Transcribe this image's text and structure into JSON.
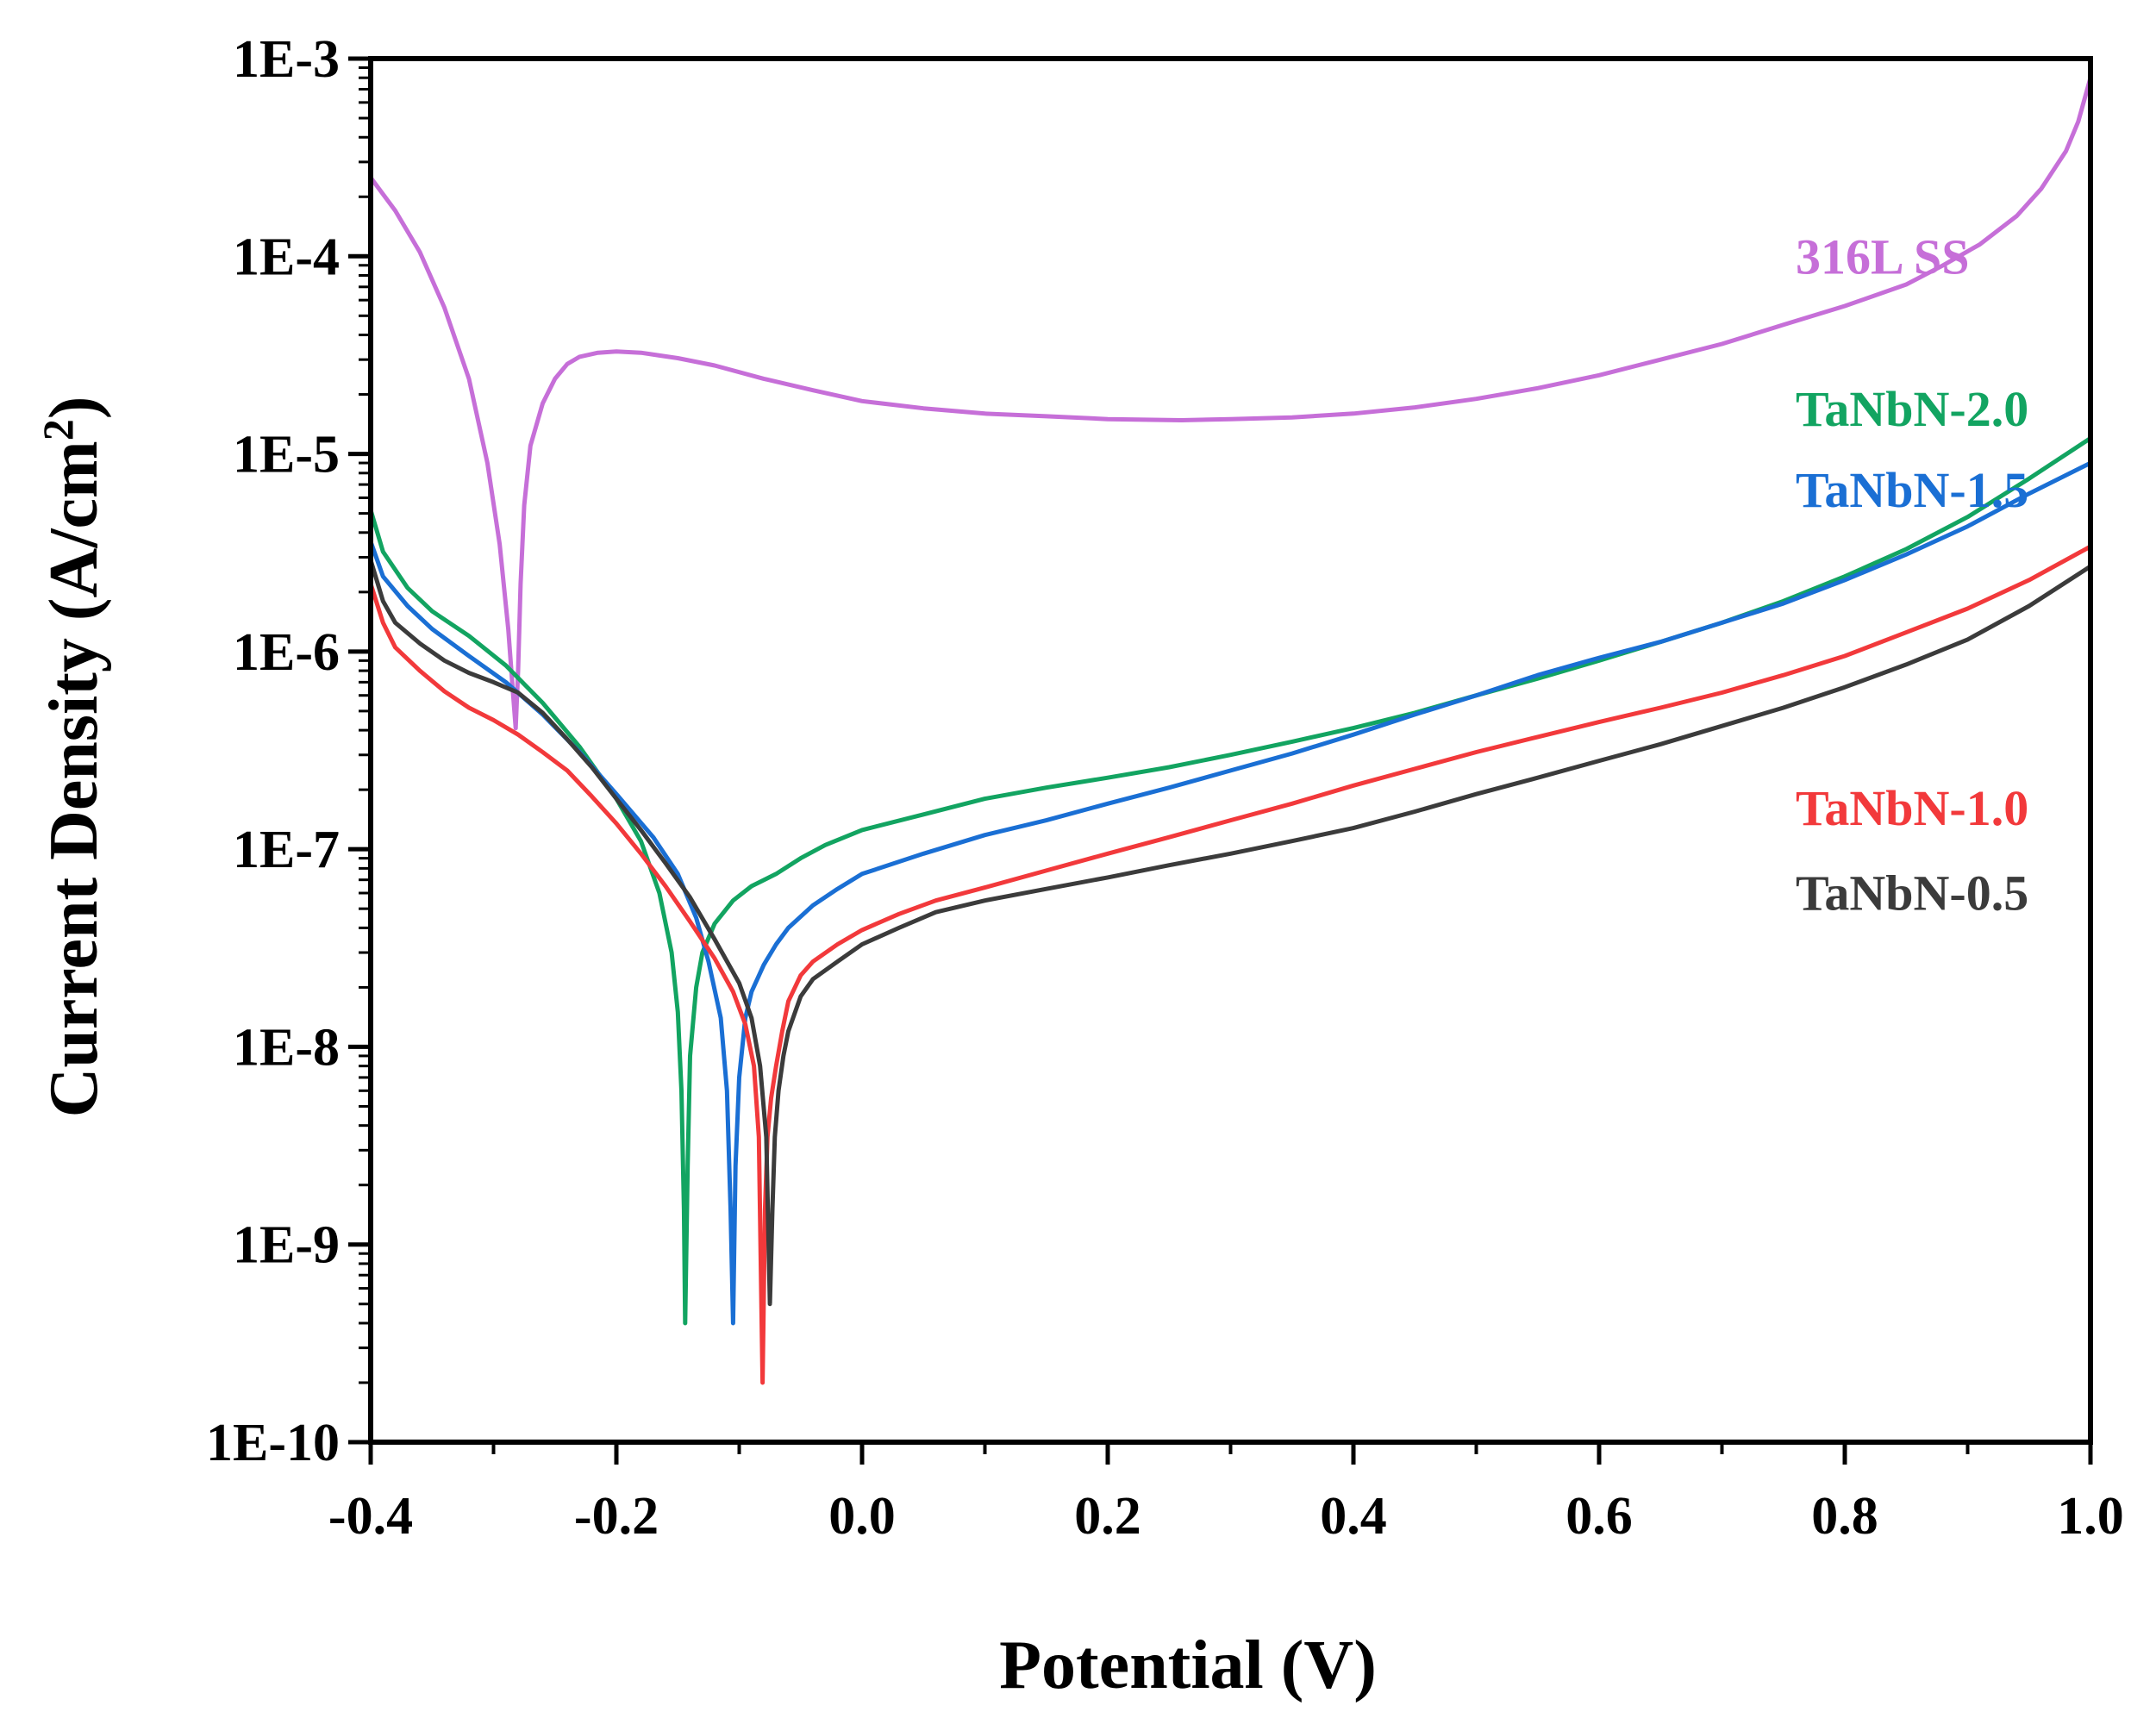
{
  "chart_data": {
    "type": "line",
    "title": "",
    "xlabel": "Potential (V)",
    "ylabel_main": "Current Density (A/cm",
    "ylabel_sup": "2",
    "ylabel_close": ")",
    "xscale": "linear",
    "yscale": "log",
    "xlim": [
      -0.4,
      1.0
    ],
    "ylim_exp": [
      -10,
      -3
    ],
    "xticks": [
      -0.4,
      -0.2,
      0.0,
      0.2,
      0.4,
      0.6,
      0.8,
      1.0
    ],
    "xtick_labels": [
      "-0.4",
      "-0.2",
      "0.0",
      "0.2",
      "0.4",
      "0.6",
      "0.8",
      "1.0"
    ],
    "yticks_exp": [
      -10,
      -9,
      -8,
      -7,
      -6,
      -5,
      -4,
      -3
    ],
    "ytick_labels": [
      "1E-10",
      "1E-9",
      "1E-8",
      "1E-7",
      "1E-6",
      "1E-5",
      "1E-4",
      "1E-3"
    ],
    "legend": "inline labels",
    "series": [
      {
        "name": "316L SS",
        "color": "#c66fd8",
        "label_pos": {
          "x": 0.76,
          "y": -4.0
        },
        "points": [
          [
            -0.4,
            0.00025
          ],
          [
            -0.38,
            0.00017
          ],
          [
            -0.36,
            0.000105
          ],
          [
            -0.34,
            5.5e-05
          ],
          [
            -0.32,
            2.4e-05
          ],
          [
            -0.305,
            9e-06
          ],
          [
            -0.295,
            3.5e-06
          ],
          [
            -0.288,
            1.3e-06
          ],
          [
            -0.284,
            6e-07
          ],
          [
            -0.282,
            4.1e-07
          ],
          [
            -0.28,
            8e-07
          ],
          [
            -0.278,
            2.2e-06
          ],
          [
            -0.275,
            5.5e-06
          ],
          [
            -0.27,
            1.1e-05
          ],
          [
            -0.26,
            1.8e-05
          ],
          [
            -0.25,
            2.4e-05
          ],
          [
            -0.24,
            2.85e-05
          ],
          [
            -0.23,
            3.1e-05
          ],
          [
            -0.215,
            3.25e-05
          ],
          [
            -0.2,
            3.3e-05
          ],
          [
            -0.18,
            3.25e-05
          ],
          [
            -0.15,
            3.05e-05
          ],
          [
            -0.12,
            2.8e-05
          ],
          [
            -0.08,
            2.4e-05
          ],
          [
            -0.04,
            2.1e-05
          ],
          [
            0.0,
            1.85e-05
          ],
          [
            0.05,
            1.7e-05
          ],
          [
            0.1,
            1.6e-05
          ],
          [
            0.15,
            1.55e-05
          ],
          [
            0.2,
            1.5e-05
          ],
          [
            0.26,
            1.48e-05
          ],
          [
            0.3,
            1.5e-05
          ],
          [
            0.35,
            1.53e-05
          ],
          [
            0.4,
            1.6e-05
          ],
          [
            0.45,
            1.72e-05
          ],
          [
            0.5,
            1.9e-05
          ],
          [
            0.55,
            2.15e-05
          ],
          [
            0.6,
            2.5e-05
          ],
          [
            0.65,
            3e-05
          ],
          [
            0.7,
            3.6e-05
          ],
          [
            0.75,
            4.5e-05
          ],
          [
            0.8,
            5.6e-05
          ],
          [
            0.85,
            7.2e-05
          ],
          [
            0.88,
            9e-05
          ],
          [
            0.91,
            0.000115
          ],
          [
            0.94,
            0.00016
          ],
          [
            0.96,
            0.00022
          ],
          [
            0.98,
            0.00034
          ],
          [
            0.99,
            0.00048
          ],
          [
            1.0,
            0.0008
          ]
        ]
      },
      {
        "name": "TaNbN-2.0",
        "color": "#12a461",
        "label_pos": {
          "x": 0.76,
          "y": -4.77
        },
        "points": [
          [
            -0.4,
            5.2e-06
          ],
          [
            -0.39,
            3.2e-06
          ],
          [
            -0.37,
            2.1e-06
          ],
          [
            -0.35,
            1.6e-06
          ],
          [
            -0.32,
            1.2e-06
          ],
          [
            -0.29,
            8.5e-07
          ],
          [
            -0.26,
            5.5e-07
          ],
          [
            -0.23,
            3.3e-07
          ],
          [
            -0.2,
            1.8e-07
          ],
          [
            -0.18,
            1.1e-07
          ],
          [
            -0.165,
            6e-08
          ],
          [
            -0.155,
            3e-08
          ],
          [
            -0.15,
            1.5e-08
          ],
          [
            -0.147,
            6e-09
          ],
          [
            -0.145,
            1.5e-09
          ],
          [
            -0.144,
            4e-10
          ],
          [
            -0.142,
            2.5e-09
          ],
          [
            -0.14,
            9e-09
          ],
          [
            -0.135,
            2e-08
          ],
          [
            -0.13,
            3e-08
          ],
          [
            -0.12,
            4.2e-08
          ],
          [
            -0.105,
            5.5e-08
          ],
          [
            -0.09,
            6.5e-08
          ],
          [
            -0.07,
            7.5e-08
          ],
          [
            -0.05,
            9e-08
          ],
          [
            -0.03,
            1.05e-07
          ],
          [
            0.0,
            1.25e-07
          ],
          [
            0.05,
            1.5e-07
          ],
          [
            0.1,
            1.8e-07
          ],
          [
            0.15,
            2.05e-07
          ],
          [
            0.2,
            2.3e-07
          ],
          [
            0.25,
            2.6e-07
          ],
          [
            0.3,
            3e-07
          ],
          [
            0.35,
            3.5e-07
          ],
          [
            0.4,
            4.1e-07
          ],
          [
            0.45,
            4.9e-07
          ],
          [
            0.5,
            6e-07
          ],
          [
            0.55,
            7.3e-07
          ],
          [
            0.6,
            9e-07
          ],
          [
            0.65,
            1.12e-06
          ],
          [
            0.7,
            1.4e-06
          ],
          [
            0.75,
            1.8e-06
          ],
          [
            0.8,
            2.4e-06
          ],
          [
            0.85,
            3.3e-06
          ],
          [
            0.9,
            4.8e-06
          ],
          [
            0.95,
            7.5e-06
          ],
          [
            1.0,
            1.2e-05
          ]
        ]
      },
      {
        "name": "TaNbN-1.5",
        "color": "#1a6fd4",
        "label_pos": {
          "x": 0.76,
          "y": -5.18
        },
        "points": [
          [
            -0.4,
            3.6e-06
          ],
          [
            -0.39,
            2.4e-06
          ],
          [
            -0.37,
            1.7e-06
          ],
          [
            -0.35,
            1.3e-06
          ],
          [
            -0.32,
            9.5e-07
          ],
          [
            -0.29,
            7e-07
          ],
          [
            -0.26,
            4.8e-07
          ],
          [
            -0.23,
            3.1e-07
          ],
          [
            -0.2,
            1.9e-07
          ],
          [
            -0.17,
            1.15e-07
          ],
          [
            -0.15,
            7.5e-08
          ],
          [
            -0.135,
            4.5e-08
          ],
          [
            -0.125,
            2.7e-08
          ],
          [
            -0.115,
            1.4e-08
          ],
          [
            -0.11,
            6e-09
          ],
          [
            -0.107,
            1.5e-09
          ],
          [
            -0.105,
            4e-10
          ],
          [
            -0.103,
            2.5e-09
          ],
          [
            -0.1,
            7e-09
          ],
          [
            -0.095,
            1.4e-08
          ],
          [
            -0.09,
            1.9e-08
          ],
          [
            -0.08,
            2.6e-08
          ],
          [
            -0.07,
            3.3e-08
          ],
          [
            -0.06,
            4e-08
          ],
          [
            -0.04,
            5.2e-08
          ],
          [
            -0.02,
            6.3e-08
          ],
          [
            0.0,
            7.5e-08
          ],
          [
            0.05,
            9.5e-08
          ],
          [
            0.1,
            1.18e-07
          ],
          [
            0.15,
            1.4e-07
          ],
          [
            0.2,
            1.7e-07
          ],
          [
            0.25,
            2.05e-07
          ],
          [
            0.3,
            2.5e-07
          ],
          [
            0.35,
            3.05e-07
          ],
          [
            0.4,
            3.8e-07
          ],
          [
            0.45,
            4.8e-07
          ],
          [
            0.5,
            6e-07
          ],
          [
            0.55,
            7.6e-07
          ],
          [
            0.6,
            9.3e-07
          ],
          [
            0.65,
            1.12e-06
          ],
          [
            0.7,
            1.4e-06
          ],
          [
            0.75,
            1.75e-06
          ],
          [
            0.8,
            2.3e-06
          ],
          [
            0.85,
            3.1e-06
          ],
          [
            0.9,
            4.3e-06
          ],
          [
            0.95,
            6.3e-06
          ],
          [
            1.0,
            9e-06
          ]
        ]
      },
      {
        "name": "TaNbN-1.0",
        "color": "#f2393b",
        "label_pos": {
          "x": 0.76,
          "y": -6.79
        },
        "points": [
          [
            -0.4,
            2.2e-06
          ],
          [
            -0.39,
            1.4e-06
          ],
          [
            -0.38,
            1.05e-06
          ],
          [
            -0.36,
            8e-07
          ],
          [
            -0.34,
            6.3e-07
          ],
          [
            -0.32,
            5.2e-07
          ],
          [
            -0.3,
            4.5e-07
          ],
          [
            -0.28,
            3.8e-07
          ],
          [
            -0.26,
            3.1e-07
          ],
          [
            -0.24,
            2.5e-07
          ],
          [
            -0.22,
            1.85e-07
          ],
          [
            -0.2,
            1.35e-07
          ],
          [
            -0.18,
            9.5e-08
          ],
          [
            -0.16,
            6.5e-08
          ],
          [
            -0.14,
            4.3e-08
          ],
          [
            -0.12,
            2.8e-08
          ],
          [
            -0.105,
            1.9e-08
          ],
          [
            -0.095,
            1.3e-08
          ],
          [
            -0.088,
            8e-09
          ],
          [
            -0.084,
            3.5e-09
          ],
          [
            -0.081,
            2e-10
          ],
          [
            -0.079,
            1.5e-09
          ],
          [
            -0.077,
            3.5e-09
          ],
          [
            -0.074,
            5.5e-09
          ],
          [
            -0.07,
            8e-09
          ],
          [
            -0.065,
            1.2e-08
          ],
          [
            -0.06,
            1.7e-08
          ],
          [
            -0.05,
            2.3e-08
          ],
          [
            -0.04,
            2.7e-08
          ],
          [
            -0.02,
            3.3e-08
          ],
          [
            0.0,
            3.9e-08
          ],
          [
            0.03,
            4.7e-08
          ],
          [
            0.06,
            5.5e-08
          ],
          [
            0.1,
            6.4e-08
          ],
          [
            0.15,
            7.8e-08
          ],
          [
            0.2,
            9.5e-08
          ],
          [
            0.25,
            1.15e-07
          ],
          [
            0.3,
            1.4e-07
          ],
          [
            0.35,
            1.7e-07
          ],
          [
            0.4,
            2.1e-07
          ],
          [
            0.45,
            2.55e-07
          ],
          [
            0.5,
            3.1e-07
          ],
          [
            0.55,
            3.7e-07
          ],
          [
            0.6,
            4.4e-07
          ],
          [
            0.65,
            5.2e-07
          ],
          [
            0.7,
            6.2e-07
          ],
          [
            0.75,
            7.6e-07
          ],
          [
            0.8,
            9.5e-07
          ],
          [
            0.85,
            1.25e-06
          ],
          [
            0.9,
            1.65e-06
          ],
          [
            0.95,
            2.3e-06
          ],
          [
            1.0,
            3.4e-06
          ]
        ]
      },
      {
        "name": "TaNbN-0.5",
        "color": "#3b3b3b",
        "label_pos": {
          "x": 0.76,
          "y": -7.22
        },
        "points": [
          [
            -0.4,
            2.9e-06
          ],
          [
            -0.39,
            1.8e-06
          ],
          [
            -0.38,
            1.4e-06
          ],
          [
            -0.36,
            1.1e-06
          ],
          [
            -0.34,
            9e-07
          ],
          [
            -0.32,
            7.8e-07
          ],
          [
            -0.3,
            7e-07
          ],
          [
            -0.28,
            6.2e-07
          ],
          [
            -0.26,
            4.9e-07
          ],
          [
            -0.24,
            3.6e-07
          ],
          [
            -0.22,
            2.6e-07
          ],
          [
            -0.2,
            1.8e-07
          ],
          [
            -0.18,
            1.25e-07
          ],
          [
            -0.16,
            8.5e-08
          ],
          [
            -0.14,
            5.7e-08
          ],
          [
            -0.12,
            3.5e-08
          ],
          [
            -0.1,
            2.1e-08
          ],
          [
            -0.09,
            1.4e-08
          ],
          [
            -0.083,
            8e-09
          ],
          [
            -0.078,
            3.5e-09
          ],
          [
            -0.075,
            5e-10
          ],
          [
            -0.073,
            1.5e-09
          ],
          [
            -0.071,
            3.5e-09
          ],
          [
            -0.068,
            6e-09
          ],
          [
            -0.064,
            9e-09
          ],
          [
            -0.06,
            1.2e-08
          ],
          [
            -0.05,
            1.8e-08
          ],
          [
            -0.04,
            2.2e-08
          ],
          [
            -0.02,
            2.7e-08
          ],
          [
            0.0,
            3.3e-08
          ],
          [
            0.03,
            4e-08
          ],
          [
            0.06,
            4.8e-08
          ],
          [
            0.1,
            5.5e-08
          ],
          [
            0.15,
            6.3e-08
          ],
          [
            0.2,
            7.2e-08
          ],
          [
            0.25,
            8.3e-08
          ],
          [
            0.3,
            9.5e-08
          ],
          [
            0.35,
            1.1e-07
          ],
          [
            0.4,
            1.28e-07
          ],
          [
            0.45,
            1.55e-07
          ],
          [
            0.5,
            1.9e-07
          ],
          [
            0.55,
            2.3e-07
          ],
          [
            0.6,
            2.8e-07
          ],
          [
            0.65,
            3.4e-07
          ],
          [
            0.7,
            4.2e-07
          ],
          [
            0.75,
            5.2e-07
          ],
          [
            0.8,
            6.6e-07
          ],
          [
            0.85,
            8.6e-07
          ],
          [
            0.9,
            1.15e-06
          ],
          [
            0.95,
            1.7e-06
          ],
          [
            1.0,
            2.7e-06
          ]
        ]
      }
    ]
  }
}
